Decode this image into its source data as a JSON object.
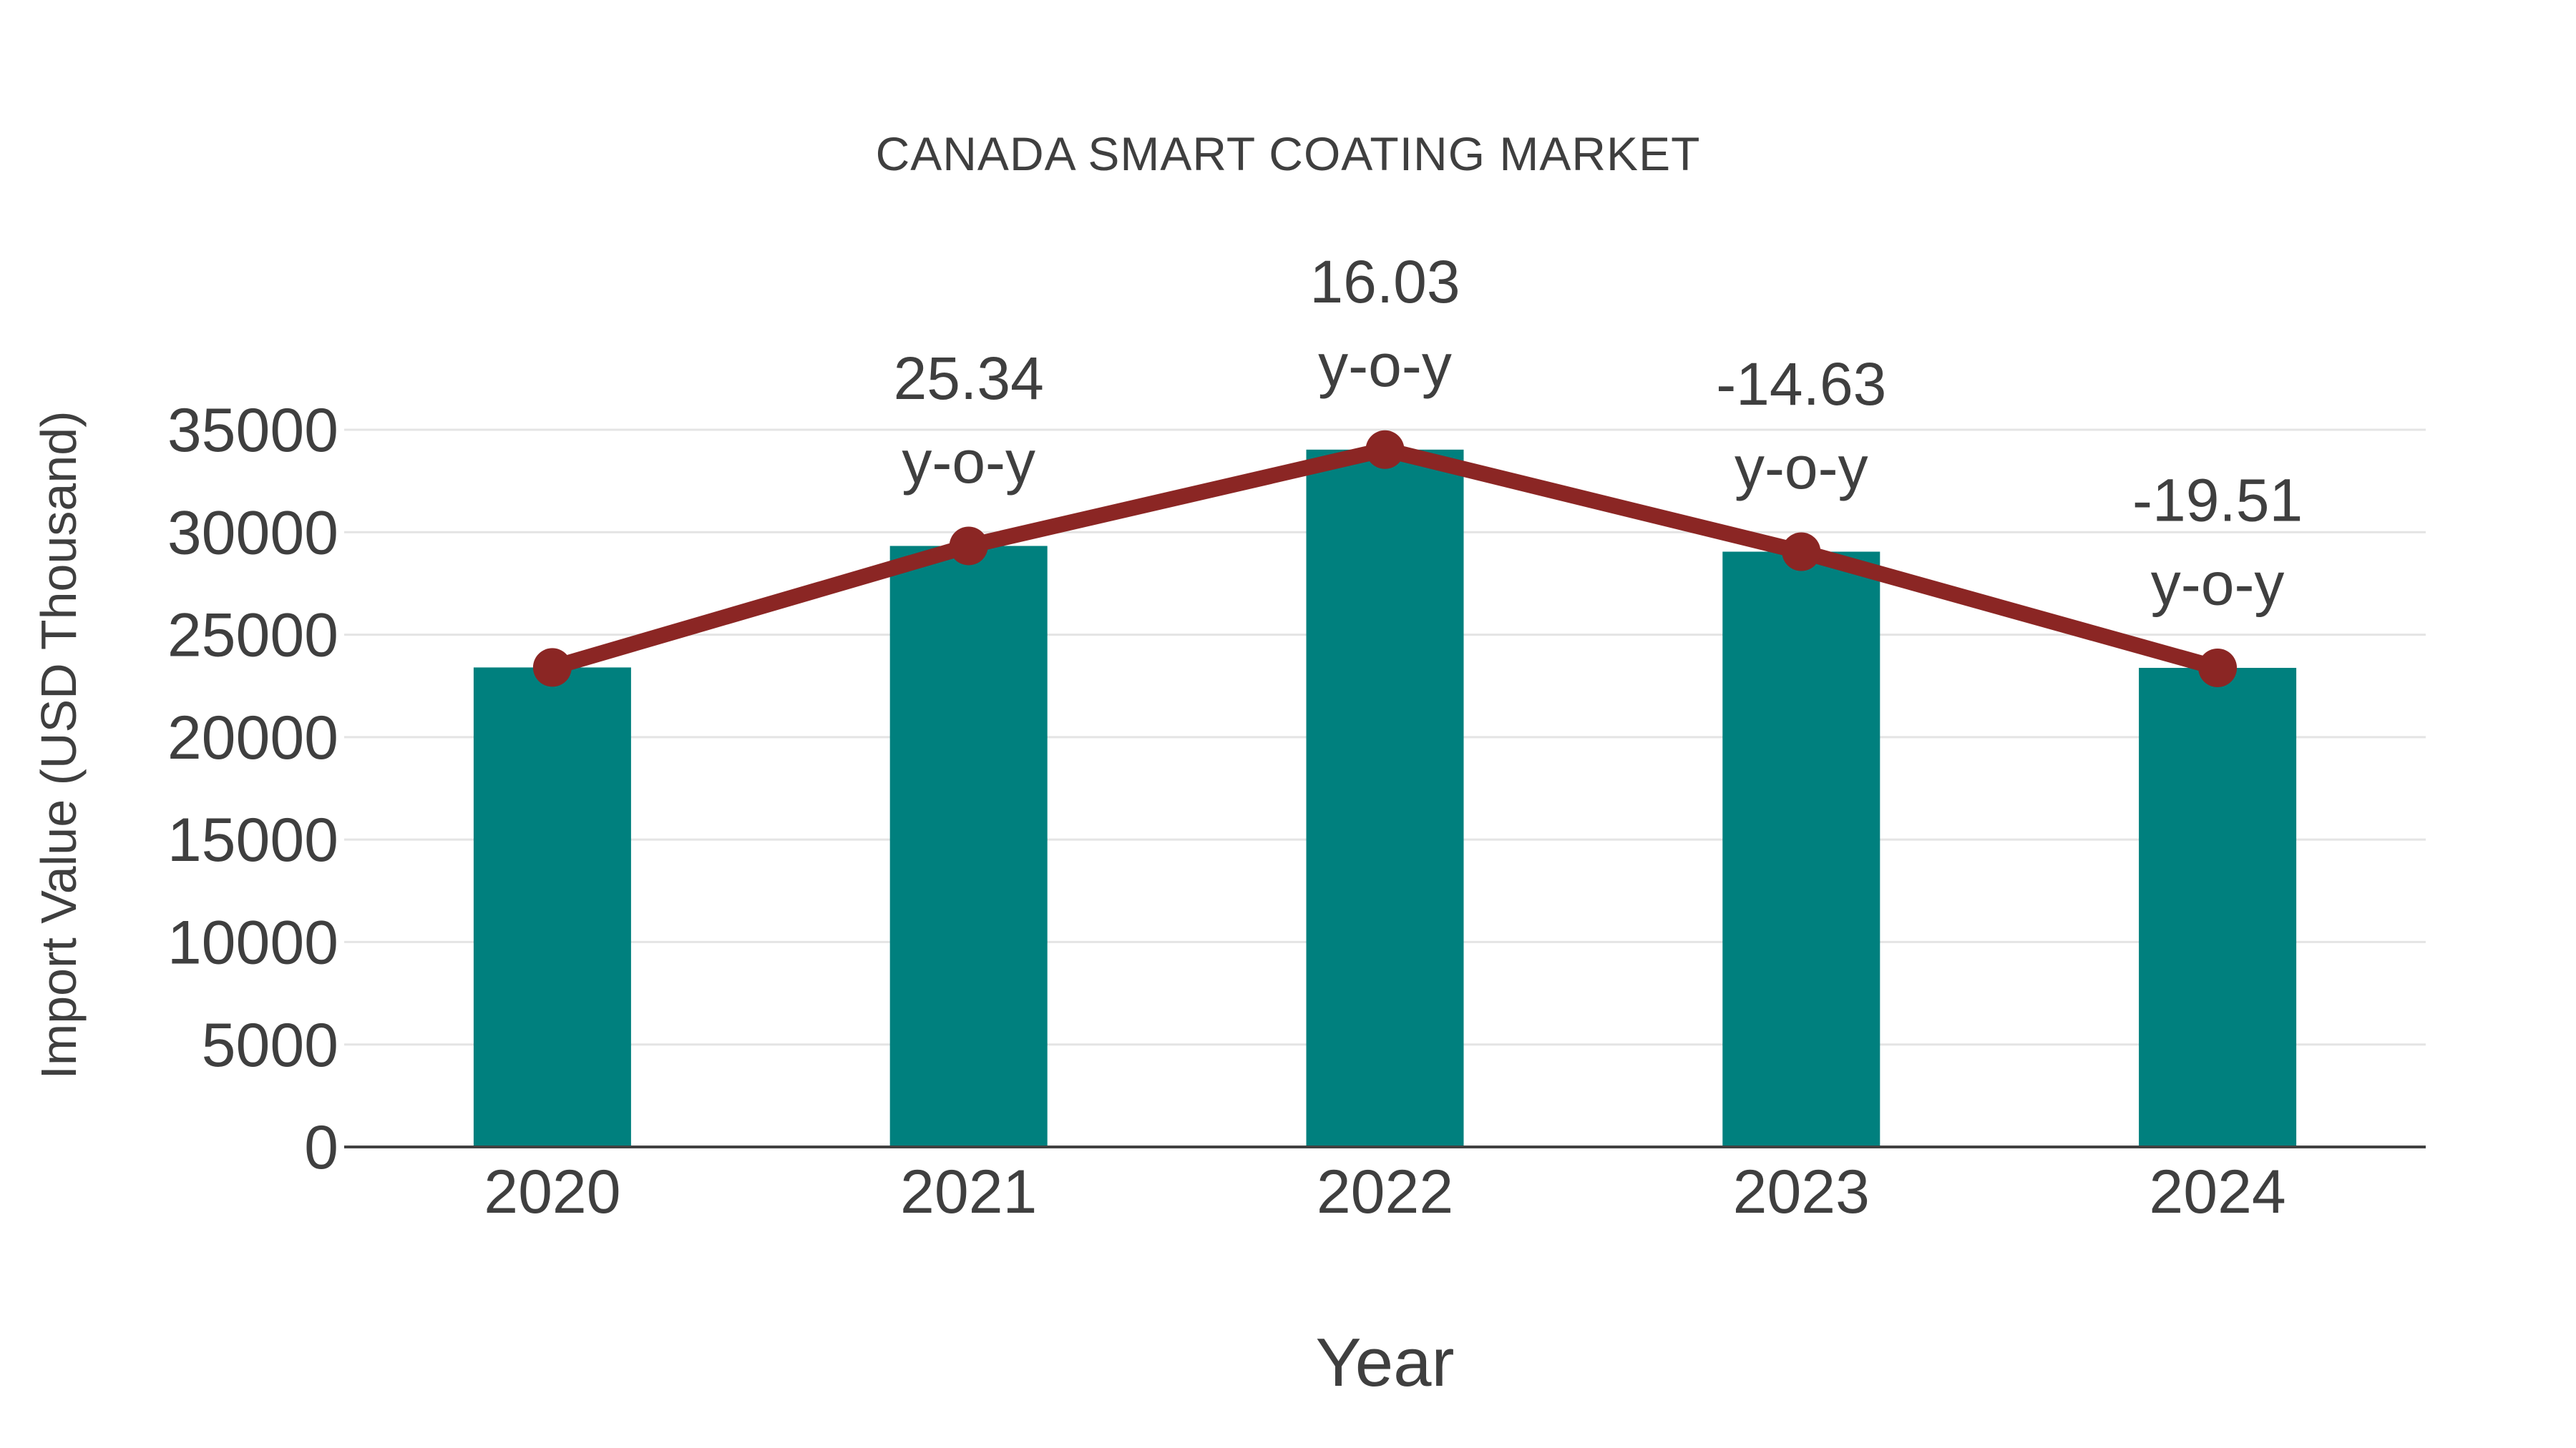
{
  "chart_data": {
    "type": "bar",
    "title": "CANADA SMART COATING MARKET",
    "xlabel": "Year",
    "ylabel": "Import Value (USD Thousand)",
    "categories": [
      "2020",
      "2021",
      "2022",
      "2023",
      "2024"
    ],
    "series": [
      {
        "name": "Import Value bars",
        "type": "bar",
        "color": "#00807E",
        "values": [
          23400,
          29330,
          34030,
          29050,
          23380
        ]
      },
      {
        "name": "Import Value trend line",
        "type": "line",
        "color": "#8B2624",
        "marker": "circle",
        "values": [
          23400,
          29330,
          34030,
          29050,
          23380
        ]
      }
    ],
    "annotations": [
      {
        "category": "2021",
        "value": "25.34",
        "label": "y-o-y"
      },
      {
        "category": "2022",
        "value": "16.03",
        "label": "y-o-y"
      },
      {
        "category": "2023",
        "value": "-14.63",
        "label": "y-o-y"
      },
      {
        "category": "2024",
        "value": "-19.51",
        "label": "y-o-y"
      }
    ],
    "ylim": [
      0,
      35000
    ],
    "yticks": [
      0,
      5000,
      10000,
      15000,
      20000,
      25000,
      30000,
      35000
    ],
    "grid": true,
    "legend_position": "none",
    "colors": {
      "bar": "#00807E",
      "line": "#8B2624",
      "marker": "#8B2624",
      "text": "#3F3F3F",
      "gridline": "#E4E4E4",
      "axis_line": "#414141",
      "background": "#FFFFFF"
    }
  }
}
